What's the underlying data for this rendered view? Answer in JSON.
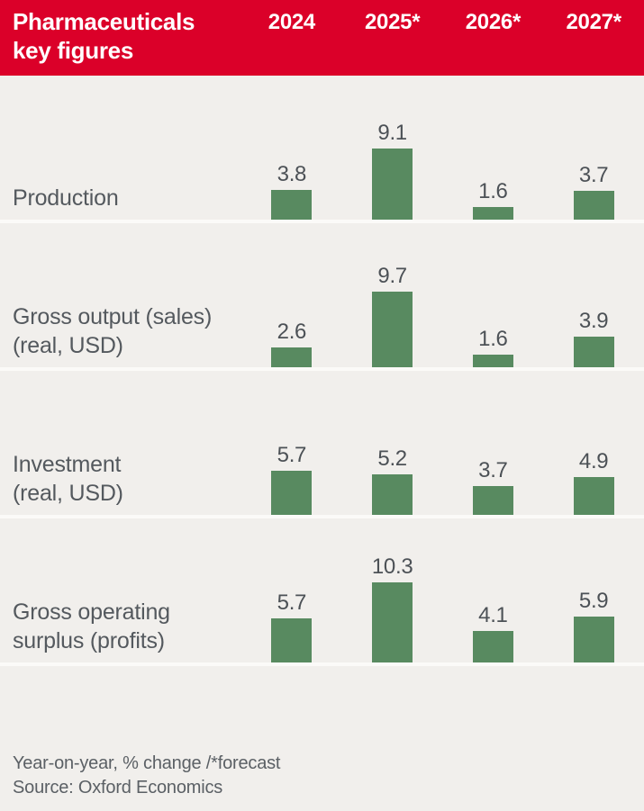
{
  "colors": {
    "header_bg": "#db0029",
    "bar": "#588a60",
    "background": "#f1efec",
    "divider": "#fbfaf8",
    "label_text": "#54595e",
    "value_text": "#4c5156"
  },
  "header": {
    "line1": "Pharmaceuticals",
    "line2": "key figures",
    "columns": [
      "2024",
      "2025*",
      "2026*",
      "2027*"
    ]
  },
  "row_labels": [
    {
      "line1": "Production",
      "line2": ""
    },
    {
      "line1": "Gross output (sales)",
      "line2": "(real, USD)"
    },
    {
      "line1": "Investment",
      "line2": "(real, USD)"
    },
    {
      "line1": "Gross operating",
      "line2": "surplus (profits)"
    }
  ],
  "footer": {
    "note": "Year-on-year, % change /*forecast",
    "source": "Source: Oxford Economics"
  },
  "chart_data": {
    "type": "bar",
    "title": "Pharmaceuticals key figures",
    "categories": [
      "2024",
      "2025*",
      "2026*",
      "2027*"
    ],
    "series": [
      {
        "name": "Production",
        "values": [
          3.8,
          9.1,
          1.6,
          3.7
        ]
      },
      {
        "name": "Gross output (sales) (real, USD)",
        "values": [
          2.6,
          9.7,
          1.6,
          3.9
        ]
      },
      {
        "name": "Investment (real, USD)",
        "values": [
          5.7,
          5.2,
          3.7,
          4.9
        ]
      },
      {
        "name": "Gross operating surplus (profits)",
        "values": [
          5.7,
          10.3,
          4.1,
          5.9
        ]
      }
    ],
    "unit": "Year-on-year, % change",
    "forecast_note": "/*forecast",
    "forecast_columns": [
      "2025*",
      "2026*",
      "2027*"
    ],
    "source": "Oxford Economics",
    "ylim": [
      0,
      10.3
    ],
    "legend": false,
    "grid": false,
    "value_labels": true
  }
}
